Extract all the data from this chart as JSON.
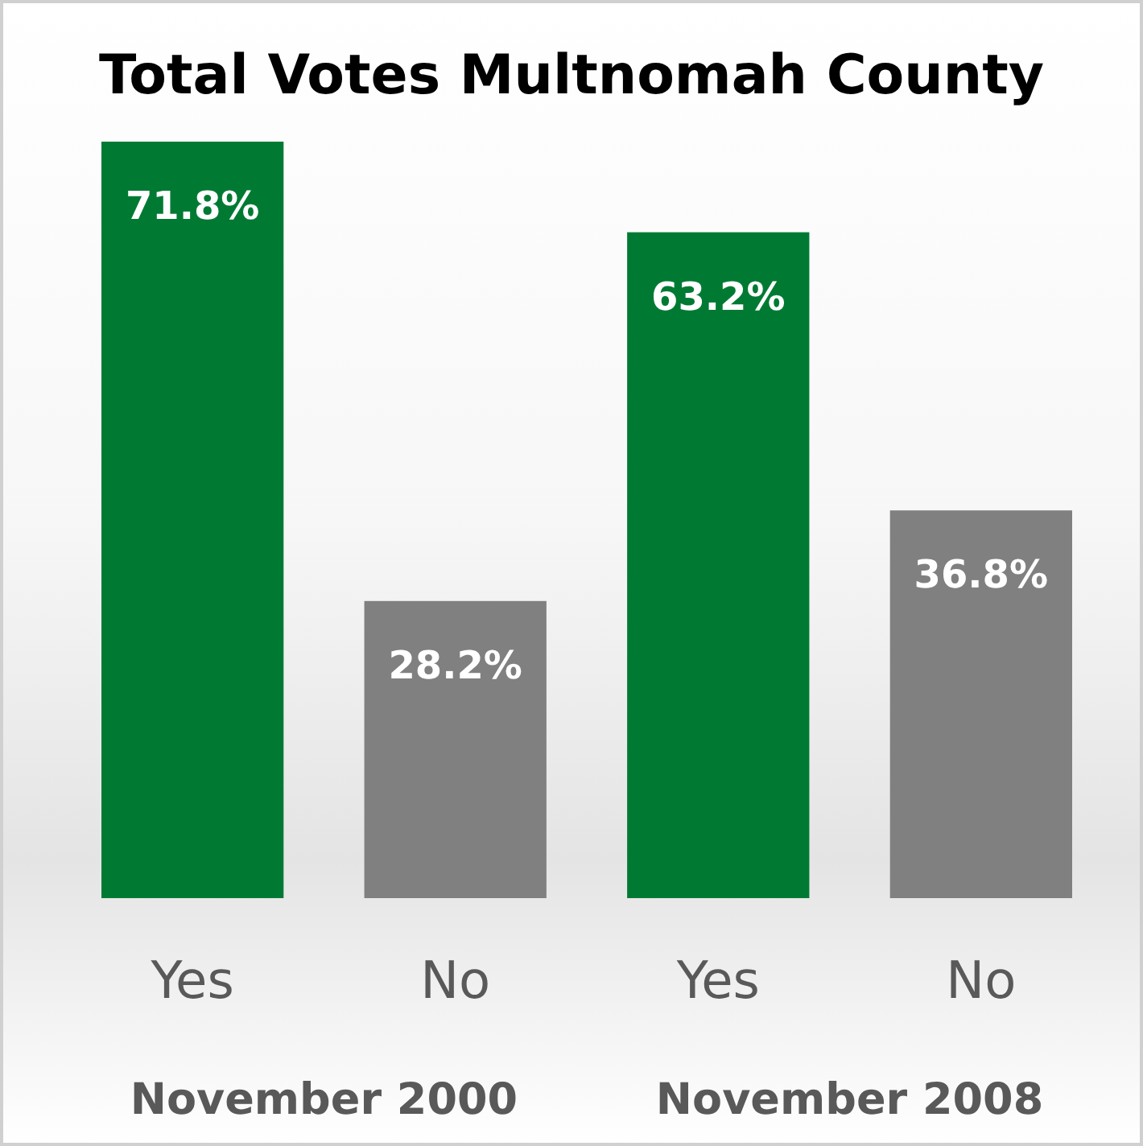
{
  "chart_data": {
    "type": "bar",
    "title": "Total Votes Multnomah County",
    "categories": [
      "Yes",
      "No",
      "Yes",
      "No"
    ],
    "values": [
      71.8,
      28.2,
      63.2,
      36.8
    ],
    "colors": [
      "#007a33",
      "#808080",
      "#007a33",
      "#808080"
    ],
    "value_labels": [
      "71.8%",
      "28.2%",
      "63.2%",
      "36.8%"
    ],
    "annotations": [
      "November 2000",
      "November 2008"
    ]
  }
}
